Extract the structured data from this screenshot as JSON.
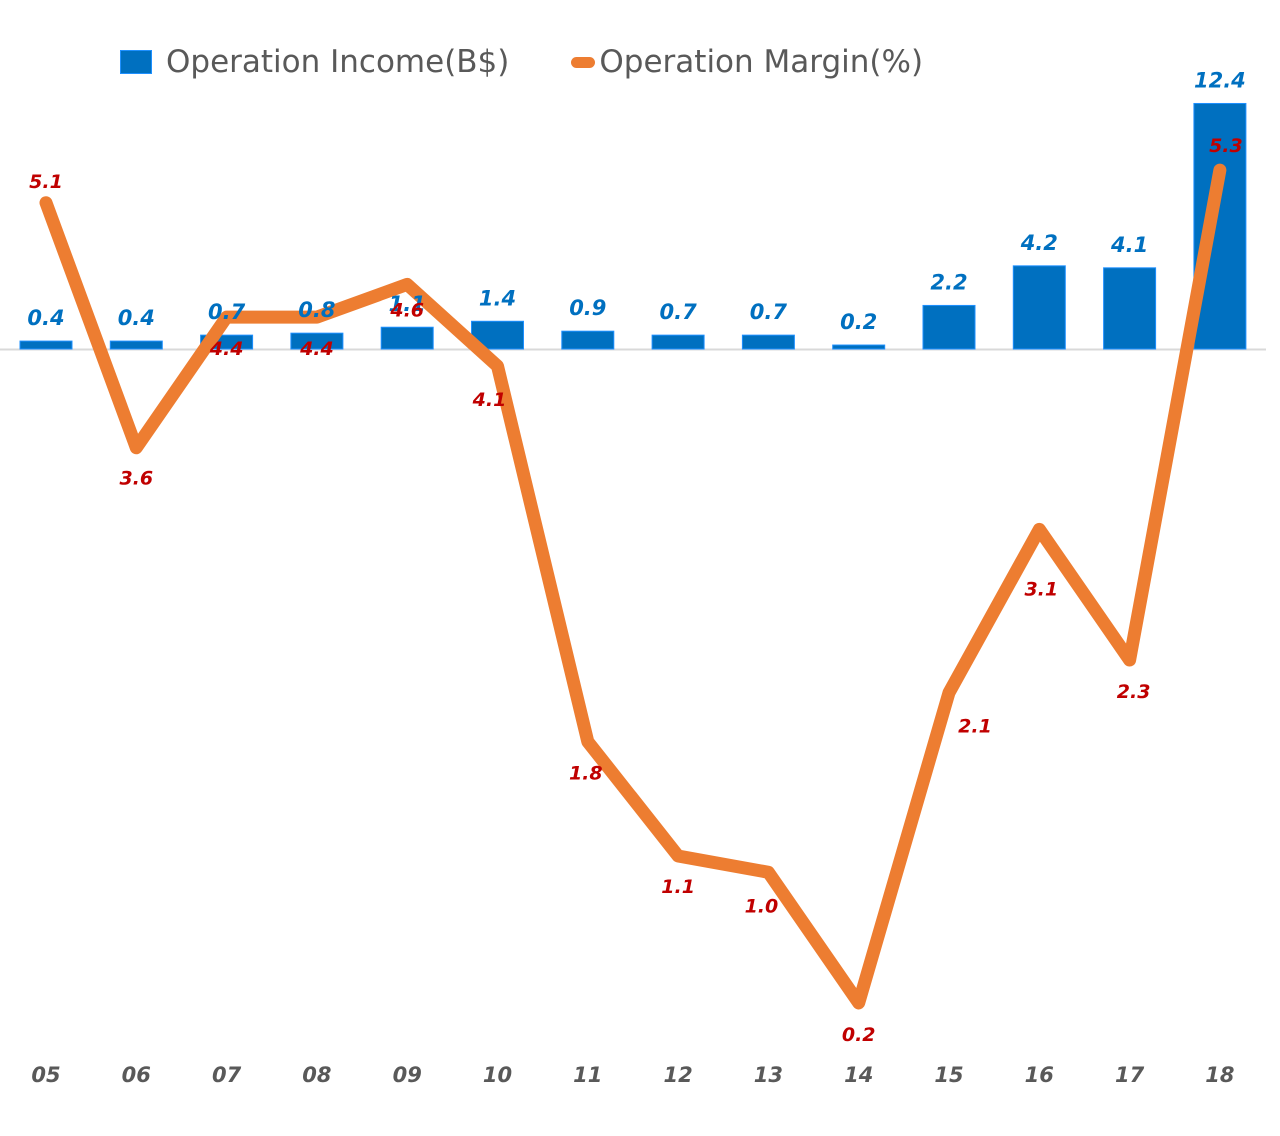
{
  "chart_data": {
    "type": "bar+line",
    "title": "",
    "xlabel": "",
    "ylabel": "",
    "categories": [
      "05",
      "06",
      "07",
      "08",
      "09",
      "10",
      "11",
      "12",
      "13",
      "14",
      "15",
      "16",
      "17",
      "18"
    ],
    "series": [
      {
        "name": "Operation Income(B$)",
        "type": "bar",
        "color": "#0070c0",
        "label_color": "#0070c0",
        "values": [
          0.4,
          0.4,
          0.7,
          0.8,
          1.1,
          1.4,
          0.9,
          0.7,
          0.7,
          0.2,
          2.2,
          4.2,
          4.1,
          12.4
        ],
        "labels": [
          "0.4",
          "0.4",
          "0.7",
          "0.8",
          "1.1",
          "1.4",
          "0.9",
          "0.7",
          "0.7",
          "0.2",
          "2.2",
          "4.2",
          "4.1",
          "12.4"
        ]
      },
      {
        "name": "Operation Margin(%)",
        "type": "line",
        "color": "#ed7d31",
        "label_color": "#c00000",
        "values": [
          5.1,
          3.6,
          4.4,
          4.4,
          4.6,
          4.1,
          1.8,
          1.1,
          1.0,
          0.2,
          2.1,
          3.1,
          2.3,
          5.3
        ],
        "labels": [
          "5.1",
          "3.6",
          "4.4",
          "4.4",
          "4.6",
          "4.1",
          "1.8",
          "1.1",
          "1.0",
          "0.2",
          "2.1",
          "3.1",
          "2.3",
          "5.3"
        ]
      }
    ],
    "legend": {
      "position": "top",
      "items": [
        "Operation Income(B$)",
        "Operation Margin(%)"
      ]
    },
    "grid": false,
    "axis_color": "#d9d9d9",
    "tick_label_color": "#595959"
  }
}
